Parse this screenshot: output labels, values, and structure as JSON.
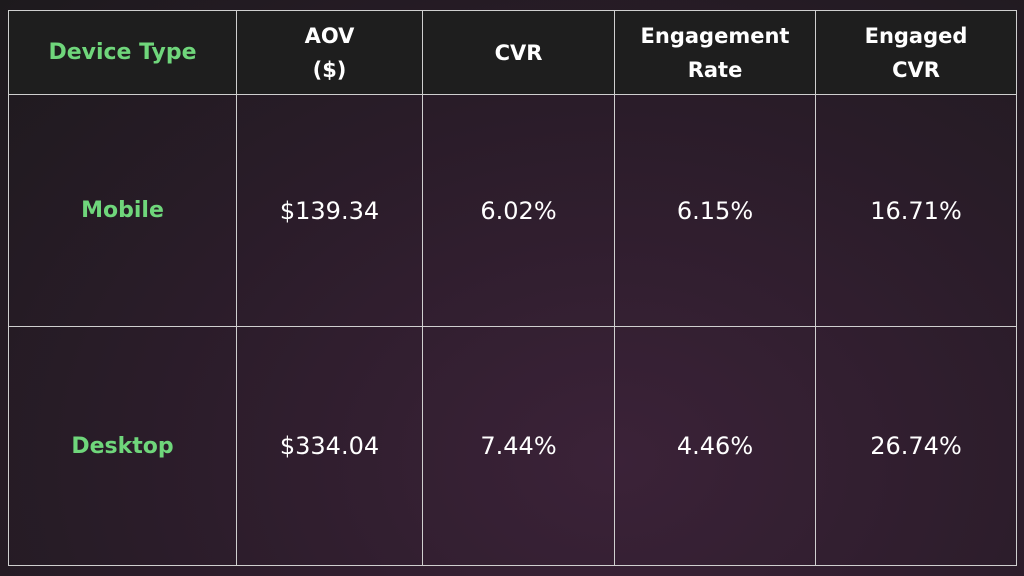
{
  "table": {
    "header": [
      "Device Type",
      "AOV\n($)",
      "CVR",
      "Engagement\nRate",
      "Engaged\nCVR"
    ],
    "rows": [
      [
        "Mobile",
        "$139.34",
        "6.02%",
        "6.15%",
        "16.71%"
      ],
      [
        "Desktop",
        "$334.04",
        "7.44%",
        "4.46%",
        "26.74%"
      ]
    ]
  }
}
